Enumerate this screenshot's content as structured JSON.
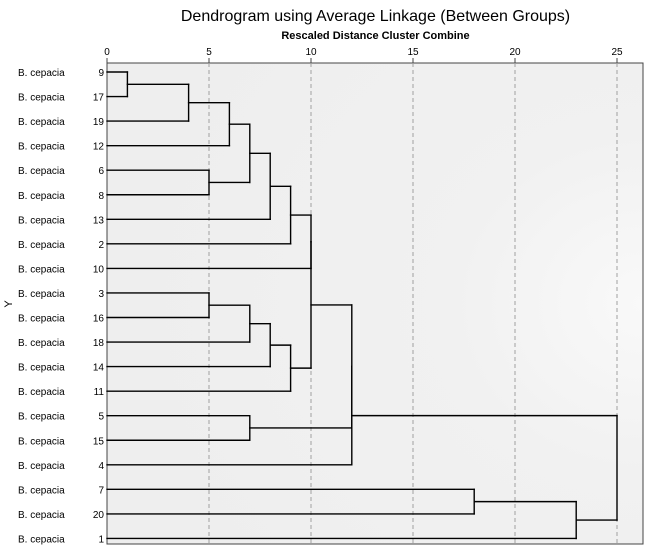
{
  "title": "Dendrogram using Average Linkage (Between Groups)",
  "subtitle": "Rescaled Distance Cluster Combine",
  "y_axis_label": "Y",
  "chart_data": {
    "type": "dendrogram",
    "xlim": [
      0,
      25
    ],
    "ticks": [
      0,
      5,
      10,
      15,
      20,
      25
    ],
    "leaves": [
      {
        "label": "B. cepacia",
        "id": "9"
      },
      {
        "label": "B. cepacia",
        "id": "17"
      },
      {
        "label": "B. cepacia",
        "id": "19"
      },
      {
        "label": "B. cepacia",
        "id": "12"
      },
      {
        "label": "B. cepacia",
        "id": "6"
      },
      {
        "label": "B. cepacia",
        "id": "8"
      },
      {
        "label": "B. cepacia",
        "id": "13"
      },
      {
        "label": "B. cepacia",
        "id": "2"
      },
      {
        "label": "B. cepacia",
        "id": "10"
      },
      {
        "label": "B. cepacia",
        "id": "3"
      },
      {
        "label": "B. cepacia",
        "id": "16"
      },
      {
        "label": "B. cepacia",
        "id": "18"
      },
      {
        "label": "B. cepacia",
        "id": "14"
      },
      {
        "label": "B. cepacia",
        "id": "11"
      },
      {
        "label": "B. cepacia",
        "id": "5"
      },
      {
        "label": "B. cepacia",
        "id": "15"
      },
      {
        "label": "B. cepacia",
        "id": "4"
      },
      {
        "label": "B. cepacia",
        "id": "7"
      },
      {
        "label": "B. cepacia",
        "id": "20"
      },
      {
        "label": "B. cepacia",
        "id": "1"
      }
    ],
    "merges": [
      {
        "a": 0,
        "b": 1,
        "height": 1
      },
      {
        "a": "m0",
        "b": 2,
        "height": 4
      },
      {
        "a": 4,
        "b": 5,
        "height": 5
      },
      {
        "a": "m1",
        "b": 3,
        "height": 6
      },
      {
        "a": "m3",
        "b": "m2",
        "height": 7
      },
      {
        "a": "m4",
        "b": 6,
        "height": 8
      },
      {
        "a": "m5",
        "b": 7,
        "height": 9
      },
      {
        "a": 9,
        "b": 10,
        "height": 5
      },
      {
        "a": "m7",
        "b": 11,
        "height": 7
      },
      {
        "a": "m8",
        "b": 12,
        "height": 8
      },
      {
        "a": "m9",
        "b": 13,
        "height": 9
      },
      {
        "a": "m6",
        "b": 8,
        "height": 10
      },
      {
        "a": "m11",
        "b": "m10",
        "height": 10
      },
      {
        "a": 14,
        "b": 15,
        "height": 7
      },
      {
        "a": "m12",
        "b": "m13",
        "height": 12
      },
      {
        "a": "m14",
        "b": 16,
        "height": 12
      },
      {
        "a": 17,
        "b": 18,
        "height": 18
      },
      {
        "a": "m16",
        "b": 19,
        "height": 23
      },
      {
        "a": "m15",
        "b": "m17",
        "height": 25
      }
    ]
  }
}
